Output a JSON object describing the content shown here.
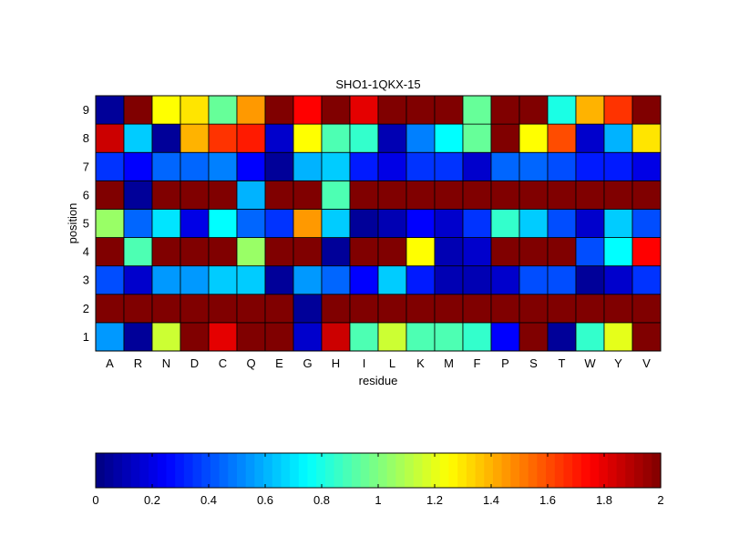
{
  "chart_data": {
    "type": "heatmap",
    "title": "SHO1-1QKX-15",
    "xlabel": "residue",
    "ylabel": "position",
    "x_categories": [
      "A",
      "R",
      "N",
      "D",
      "C",
      "Q",
      "E",
      "G",
      "H",
      "I",
      "L",
      "K",
      "M",
      "F",
      "P",
      "S",
      "T",
      "W",
      "Y",
      "V"
    ],
    "y_categories": [
      "1",
      "2",
      "3",
      "4",
      "5",
      "6",
      "7",
      "8",
      "9"
    ],
    "values": [
      [
        0.55,
        0.05,
        1.15,
        2.0,
        1.8,
        2.0,
        2.0,
        0.15,
        1.85,
        0.9,
        1.15,
        0.9,
        0.9,
        0.85,
        0.25,
        2.0,
        0.05,
        0.85,
        1.2,
        2.0
      ],
      [
        2.0,
        2.0,
        2.0,
        2.0,
        2.0,
        2.0,
        2.0,
        0.05,
        2.0,
        2.0,
        2.0,
        2.0,
        2.0,
        2.0,
        2.0,
        2.0,
        2.0,
        2.0,
        2.0,
        2.0
      ],
      [
        0.4,
        0.15,
        0.55,
        0.55,
        0.65,
        0.65,
        0.05,
        0.55,
        0.45,
        0.25,
        0.65,
        0.3,
        0.1,
        0.1,
        0.15,
        0.4,
        0.4,
        0.05,
        0.15,
        0.35
      ],
      [
        2.0,
        0.9,
        2.0,
        2.0,
        2.0,
        1.05,
        2.0,
        2.0,
        0.05,
        2.0,
        2.0,
        1.25,
        0.1,
        0.15,
        2.0,
        2.0,
        2.0,
        0.4,
        0.75,
        1.75
      ],
      [
        1.05,
        0.45,
        0.7,
        0.2,
        0.75,
        0.45,
        0.35,
        1.45,
        0.65,
        0.05,
        0.1,
        0.25,
        0.15,
        0.35,
        0.85,
        0.65,
        0.4,
        0.15,
        0.65,
        0.4
      ],
      [
        2.0,
        0.05,
        2.0,
        2.0,
        2.0,
        0.6,
        2.0,
        2.0,
        0.9,
        2.0,
        2.0,
        2.0,
        2.0,
        2.0,
        2.0,
        2.0,
        2.0,
        2.0,
        2.0,
        2.0
      ],
      [
        0.35,
        0.25,
        0.45,
        0.45,
        0.5,
        0.25,
        0.05,
        0.6,
        0.65,
        0.3,
        0.2,
        0.35,
        0.35,
        0.15,
        0.45,
        0.45,
        0.4,
        0.3,
        0.3,
        0.2
      ],
      [
        1.85,
        0.65,
        0.05,
        1.4,
        1.65,
        1.7,
        0.15,
        1.25,
        0.9,
        0.85,
        0.1,
        0.5,
        0.75,
        0.95,
        2.0,
        1.25,
        1.6,
        0.15,
        0.6,
        1.3
      ],
      [
        0.05,
        2.0,
        1.25,
        1.3,
        0.95,
        1.45,
        2.0,
        1.75,
        2.0,
        1.8,
        2.0,
        2.0,
        2.0,
        0.95,
        2.0,
        2.0,
        0.8,
        1.4,
        1.65,
        2.0
      ]
    ],
    "colorbar": {
      "min": 0,
      "max": 2,
      "colormap": "jet",
      "ticks": [
        "0",
        "0.2",
        "0.4",
        "0.6",
        "0.8",
        "1",
        "1.2",
        "1.4",
        "1.6",
        "1.8",
        "2"
      ]
    },
    "grid": false
  }
}
